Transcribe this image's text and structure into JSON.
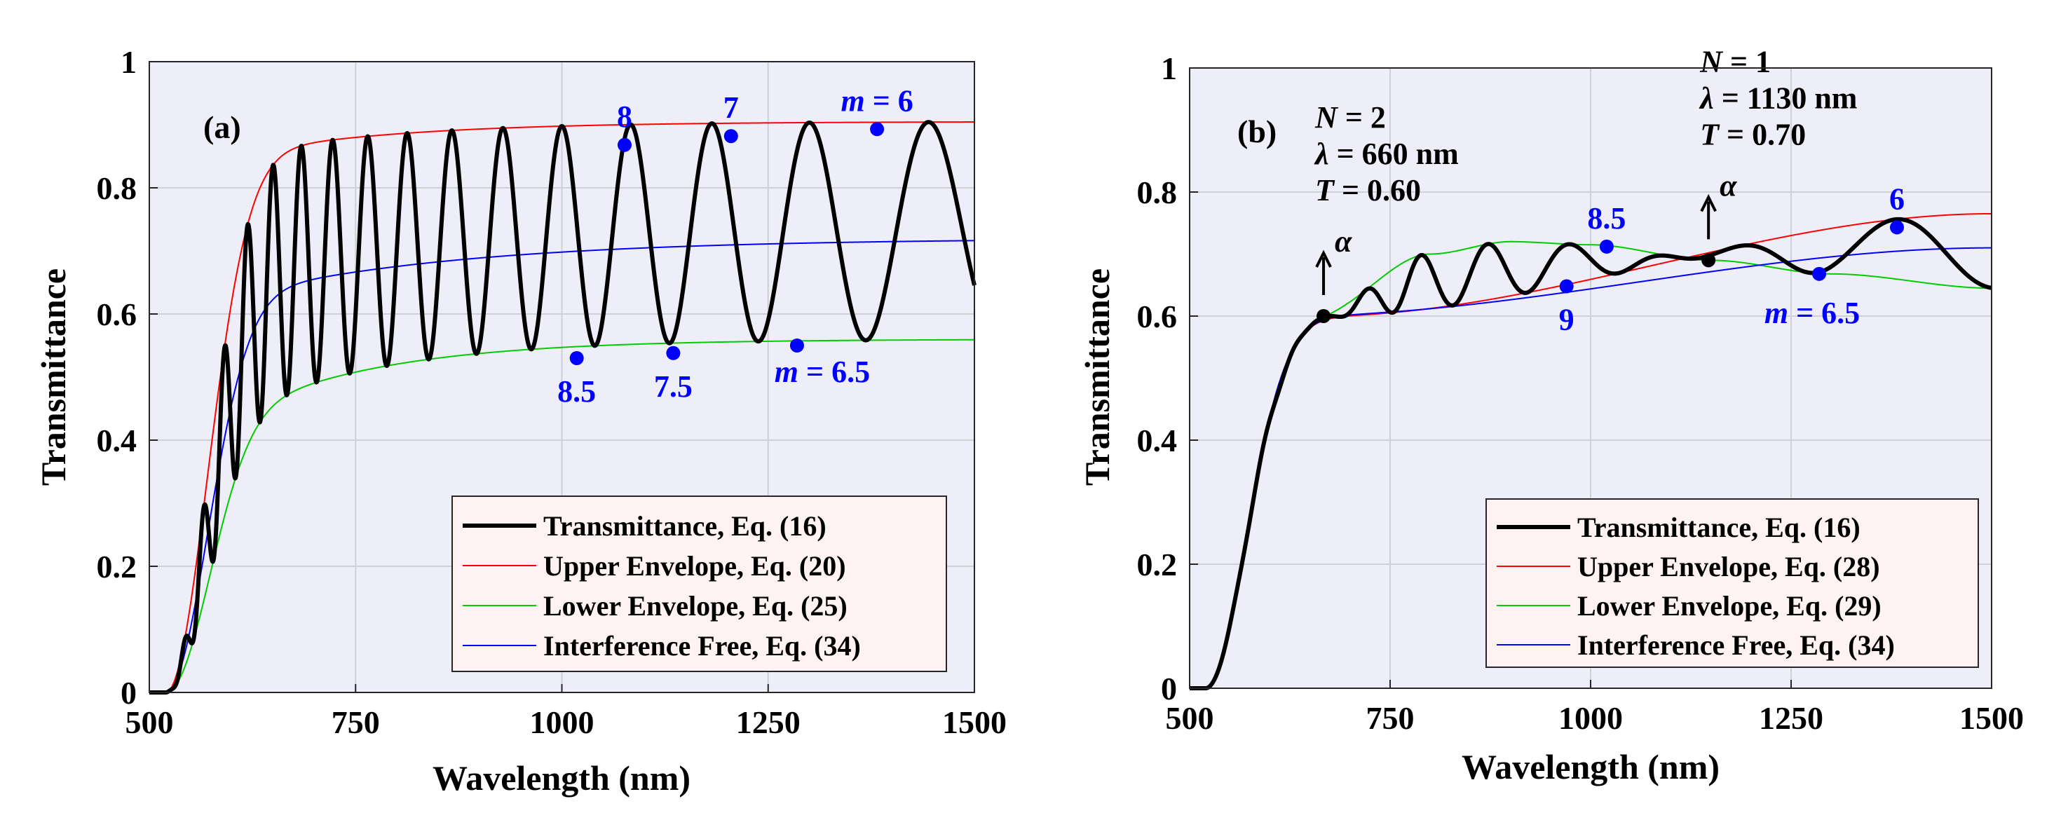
{
  "chart_data": [
    {
      "type": "line",
      "panel_label": "(a)",
      "xlabel": "Wavelength (nm)",
      "ylabel": "Transmittance",
      "xlim": [
        500,
        1500
      ],
      "ylim": [
        0,
        1
      ],
      "x_ticks": [
        "500",
        "750",
        "1000",
        "1250",
        "1500"
      ],
      "y_ticks": [
        "0",
        "0.2",
        "0.4",
        "0.6",
        "0.8",
        "1"
      ],
      "grid": true,
      "legend_position": "bottom-right",
      "series": [
        {
          "name": "Transmittance, Eq. (16)",
          "color": "#000000",
          "model": "fringes_a"
        },
        {
          "name": "Upper Envelope, Eq. (20)",
          "color": "#ff0000",
          "model": "upper_a"
        },
        {
          "name": "Lower Envelope, Eq. (25)",
          "color": "#00cc00",
          "model": "lower_a"
        },
        {
          "name": "Interference Free, Eq. (34)",
          "color": "#0000ff",
          "model": "free_a"
        }
      ],
      "points": [
        {
          "x": 1076,
          "y": 0.868,
          "label": "8",
          "pos": "above"
        },
        {
          "x": 1205,
          "y": 0.882,
          "label": "7",
          "pos": "above"
        },
        {
          "x": 1382,
          "y": 0.893,
          "label": "= 6",
          "italic_prefix": "m ",
          "pos": "above"
        },
        {
          "x": 1018,
          "y": 0.53,
          "label": "8.5",
          "pos": "below"
        },
        {
          "x": 1135,
          "y": 0.538,
          "label": "7.5",
          "pos": "below"
        },
        {
          "x": 1285,
          "y": 0.55,
          "label": "= 6.5",
          "italic_prefix": "m ",
          "pos": "below-right"
        }
      ],
      "annotations": []
    },
    {
      "type": "line",
      "panel_label": "(b)",
      "xlabel": "Wavelength (nm)",
      "ylabel": "Transmittance",
      "xlim": [
        500,
        1500
      ],
      "ylim": [
        0,
        1
      ],
      "x_ticks": [
        "500",
        "750",
        "1000",
        "1250",
        "1500"
      ],
      "y_ticks": [
        "0",
        "0.2",
        "0.4",
        "0.6",
        "0.8",
        "1"
      ],
      "grid": true,
      "legend_position": "bottom-right",
      "series": [
        {
          "name": "Transmittance, Eq. (16)",
          "color": "#000000",
          "model": "fringes_b"
        },
        {
          "name": "Upper Envelope, Eq. (28)",
          "color": "#ff0000",
          "model": "upper_b"
        },
        {
          "name": "Lower Envelope, Eq. (29)",
          "color": "#00cc00",
          "model": "lower_b"
        },
        {
          "name": "Interference Free, Eq. (34)",
          "color": "#0000ff",
          "model": "free_b"
        }
      ],
      "points": [
        {
          "x": 1020,
          "y": 0.712,
          "label": "8.5",
          "pos": "above"
        },
        {
          "x": 1382,
          "y": 0.743,
          "label": "6",
          "pos": "above"
        },
        {
          "x": 970,
          "y": 0.648,
          "label": "9",
          "pos": "below"
        },
        {
          "x": 1285,
          "y": 0.668,
          "label": "= 6.5",
          "italic_prefix": "m ",
          "pos": "below-left"
        }
      ],
      "annotations": [
        {
          "x": 667,
          "y": 0.6,
          "lines": [
            "N = 2",
            "λ = 660 nm",
            "T   = 0.60"
          ],
          "alpha": "α"
        },
        {
          "x": 1147,
          "y": 0.69,
          "lines": [
            "N = 1",
            "λ = 1130 nm",
            "T   = 0.70"
          ],
          "alpha": "α"
        }
      ]
    }
  ]
}
